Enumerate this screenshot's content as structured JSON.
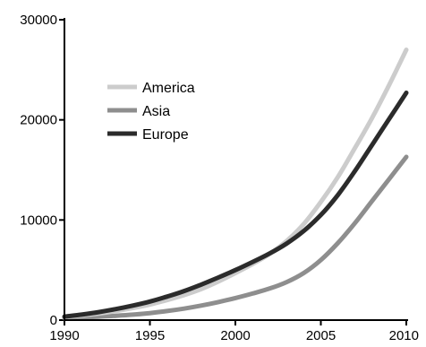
{
  "chart_data": {
    "type": "line",
    "title": "",
    "xlabel": "",
    "ylabel": "",
    "xlim": [
      1990,
      2010
    ],
    "ylim": [
      0,
      30000
    ],
    "x_ticks": [
      "1990",
      "1995",
      "2000",
      "2005",
      "2010"
    ],
    "y_ticks": [
      "0",
      "10000",
      "20000",
      "30000"
    ],
    "grid": false,
    "legend_placement": "upper-left",
    "x": [
      1990,
      1991,
      1992,
      1993,
      1994,
      1995,
      1996,
      1997,
      1998,
      1999,
      2000,
      2001,
      2002,
      2003,
      2004,
      2005,
      2006,
      2007,
      2008,
      2009,
      2010
    ],
    "series": [
      {
        "name": "America",
        "color": "#cccccc",
        "values": [
          300,
          450,
          650,
          900,
          1200,
          1550,
          2000,
          2500,
          3100,
          3850,
          4700,
          5600,
          6600,
          7900,
          9600,
          11800,
          14300,
          17200,
          20200,
          23500,
          27000
        ]
      },
      {
        "name": "Asia",
        "color": "#8e8e8e",
        "values": [
          200,
          260,
          340,
          430,
          550,
          700,
          900,
          1150,
          1450,
          1800,
          2200,
          2650,
          3150,
          3800,
          4700,
          6000,
          7700,
          9700,
          11900,
          14100,
          16300
        ]
      },
      {
        "name": "Europe",
        "color": "#2b2b2b",
        "values": [
          350,
          550,
          800,
          1100,
          1450,
          1850,
          2350,
          2900,
          3550,
          4250,
          5000,
          5800,
          6650,
          7650,
          8900,
          10500,
          12500,
          14900,
          17500,
          20100,
          22700
        ]
      }
    ]
  }
}
